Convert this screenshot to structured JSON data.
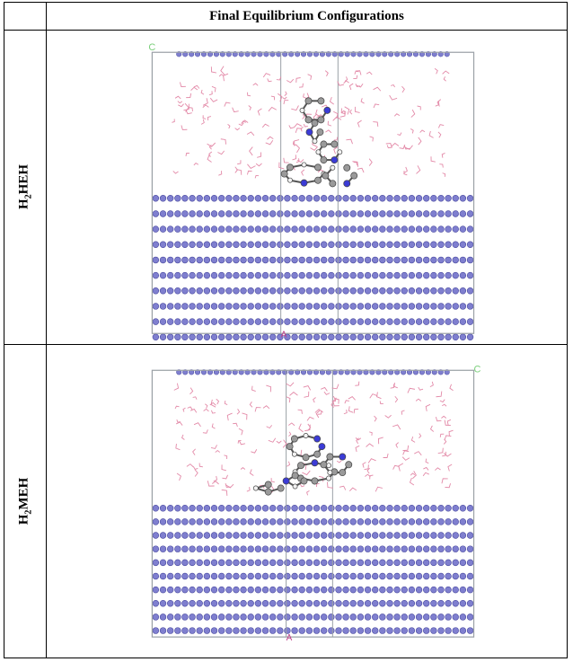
{
  "table": {
    "header": "Final Equilibrium Configurations",
    "rows": [
      {
        "label_main": "H",
        "label_sub": "2",
        "label_rest": "HEH",
        "corner_glyph": "C",
        "axis_glyph": "A"
      },
      {
        "label_main": "H",
        "label_sub": "2",
        "label_rest": "MEH",
        "corner_glyph": "C",
        "axis_glyph": "A"
      }
    ]
  },
  "colors": {
    "metal_atom": "#7f7fcf",
    "metal_atom_dark": "#4a4aa0",
    "water": "#e38aa8",
    "cell_border": "#9aa0a6",
    "carbon": "#9a9a9a",
    "nitrogen": "#3b3bd6",
    "hydrogen": "#f2f2f2",
    "corner_glyph": "#7ccf7c",
    "axis_glyph": "#c0408a"
  }
}
